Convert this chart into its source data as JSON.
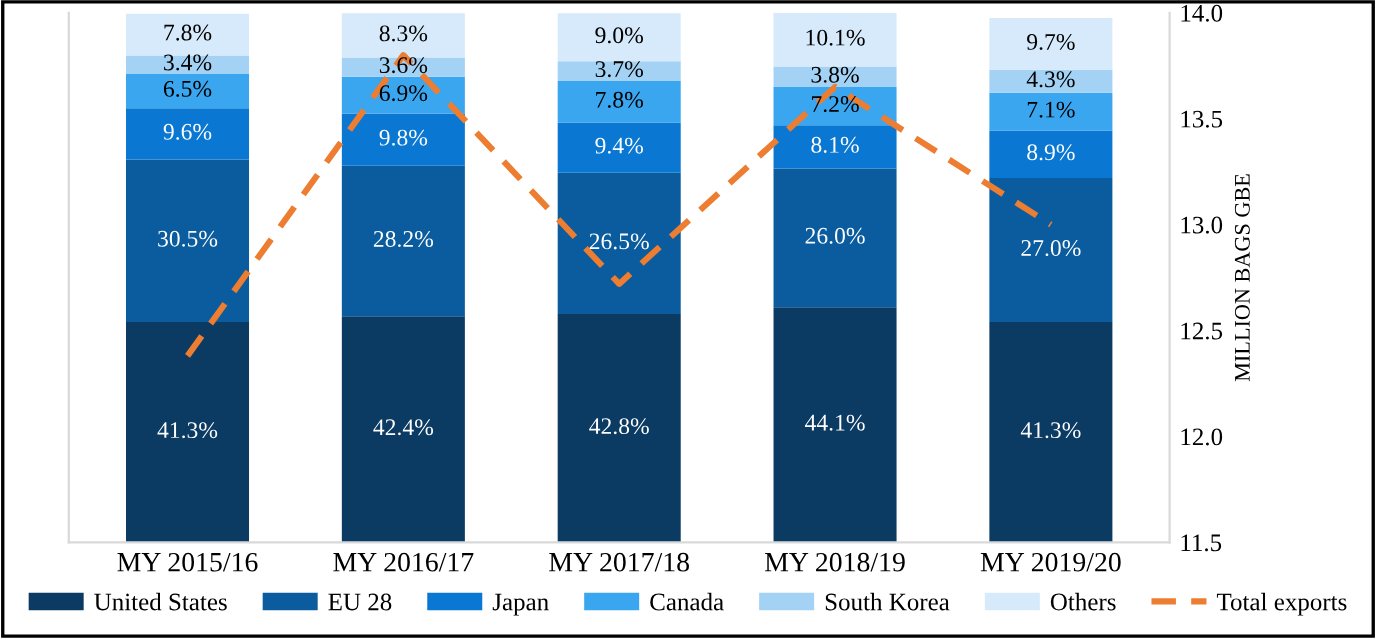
{
  "chart_data": {
    "type": "bar",
    "stacked": true,
    "y2label": "MILLION BAGS GBE",
    "categories": [
      "MY 2015/16",
      "MY 2016/17",
      "MY 2017/18",
      "MY 2018/19",
      "MY 2019/20"
    ],
    "y2lim": [
      11.5,
      14.0
    ],
    "y2ticks": [
      {
        "value": 11.5,
        "label": "11.5"
      },
      {
        "value": 12.0,
        "label": "12.0"
      },
      {
        "value": 12.5,
        "label": "12.5"
      },
      {
        "value": 13.0,
        "label": "13.0"
      },
      {
        "value": 13.5,
        "label": "13.5"
      },
      {
        "value": 14.0,
        "label": "14.0"
      }
    ],
    "grid": false,
    "legend": "bottom",
    "series": [
      {
        "name": "United States",
        "color": "#0b3a63",
        "values": [
          41.3,
          42.4,
          42.8,
          44.1,
          41.3
        ],
        "value_labels": [
          "41.3%",
          "42.4%",
          "42.8%",
          "44.1%",
          "41.3%"
        ]
      },
      {
        "name": "EU 28",
        "color": "#0a5c9e",
        "values": [
          30.5,
          28.2,
          26.5,
          26.0,
          27.0
        ],
        "value_labels": [
          "30.5%",
          "28.2%",
          "26.5%",
          "26.0%",
          "27.0%"
        ]
      },
      {
        "name": "Japan",
        "color": "#0a78d2",
        "values": [
          9.6,
          9.8,
          9.4,
          8.1,
          8.9
        ],
        "value_labels": [
          "9.6%",
          "9.8%",
          "9.4%",
          "8.1%",
          "8.9%"
        ]
      },
      {
        "name": "Canada",
        "color": "#3aa6f0",
        "values": [
          6.5,
          6.9,
          7.8,
          7.2,
          7.1
        ],
        "value_labels": [
          "6.5%",
          "6.9%",
          "7.8%",
          "7.2%",
          "7.1%"
        ]
      },
      {
        "name": "South Korea",
        "color": "#a3d2f5",
        "values": [
          3.4,
          3.6,
          3.7,
          3.8,
          4.3
        ],
        "value_labels": [
          "3.4%",
          "3.6%",
          "3.7%",
          "3.8%",
          "4.3%"
        ]
      },
      {
        "name": "Others",
        "color": "#d6eafb",
        "values": [
          7.8,
          8.3,
          9.0,
          10.1,
          9.7
        ],
        "value_labels": [
          "7.8%",
          "8.3%",
          "9.0%",
          "10.1%",
          "9.7%"
        ]
      },
      {
        "name": "Total exports",
        "type": "line",
        "axis": "y2",
        "color": "#ed7d31",
        "line_style": "dashed",
        "marker": "none",
        "values": [
          12.38,
          13.8,
          12.72,
          13.65,
          13.0
        ]
      }
    ]
  }
}
